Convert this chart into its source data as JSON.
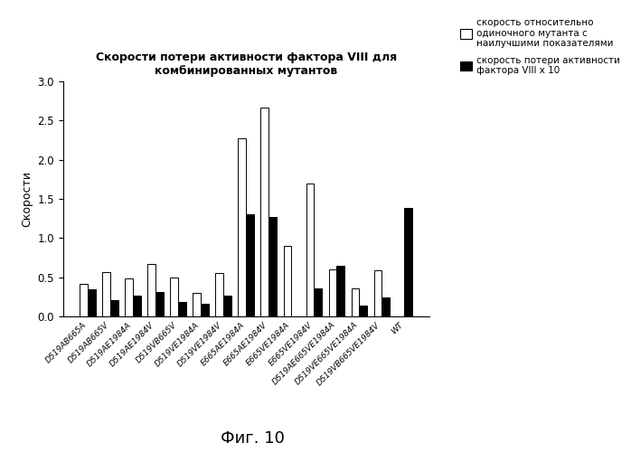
{
  "categories": [
    "D519AB665A",
    "D519AB665V",
    "D519AE1984A",
    "D519AE1984V",
    "D519VB665V",
    "D519VE1984A",
    "D519VE1984V",
    "E665AE1984A",
    "E665AE1984V",
    "E665VE1984A",
    "E665VE1984V",
    "D519AE665VE1984A",
    "D519VE665VE1984A",
    "D519VB665VE1984V",
    "WT"
  ],
  "white_bars": [
    0.41,
    0.56,
    0.48,
    0.67,
    0.5,
    0.3,
    0.55,
    2.27,
    2.67,
    0.9,
    1.7,
    0.6,
    0.36,
    0.59,
    0.0
  ],
  "black_bars": [
    0.35,
    0.21,
    0.27,
    0.31,
    0.19,
    0.16,
    0.26,
    1.3,
    1.27,
    0.0,
    0.36,
    0.65,
    0.14,
    0.24,
    1.39
  ],
  "ylabel": "Скорости",
  "title_line1": "Скорости потери активности фактора VIII для",
  "title_line2": "комбинированных мутантов",
  "legend1": "скорость относительно\nодиночного мутанта с\nнаилучшими показателями",
  "legend2": "скорость потери активности\nфактора VIII x 10",
  "ylim": [
    0.0,
    3.0
  ],
  "yticks": [
    0.0,
    0.5,
    1.0,
    1.5,
    2.0,
    2.5,
    3.0
  ],
  "fig_label": "Фиг. 10",
  "bar_width": 0.35,
  "background_color": "#ffffff"
}
